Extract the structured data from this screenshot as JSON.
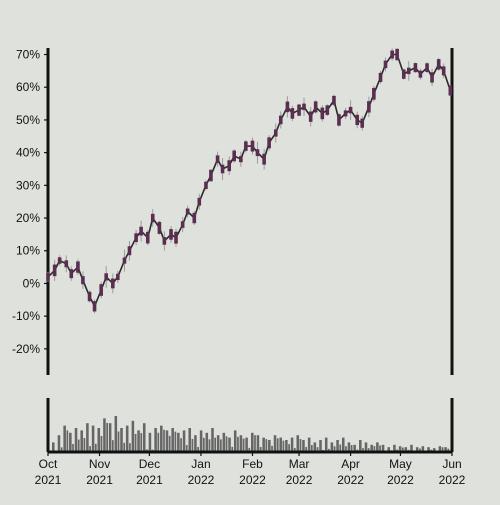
{
  "chart_data": [
    {
      "type": "candlestick",
      "title": "",
      "xlabel": "",
      "ylabel": "",
      "y_unit": "%",
      "ylim": [
        -0.28,
        0.72
      ],
      "yticks": [
        -0.2,
        -0.1,
        0.0,
        0.1,
        0.2,
        0.3,
        0.4,
        0.5,
        0.6,
        0.7
      ],
      "ytick_labels": [
        "-20%",
        "-10%",
        "0%",
        "10%",
        "20%",
        "30%",
        "40%",
        "50%",
        "60%",
        "70%"
      ],
      "xlim": [
        "2021-10-01",
        "2022-06-01"
      ],
      "xticks": [
        "2021-10-01",
        "2021-11-01",
        "2021-12-01",
        "2022-01-01",
        "2022-02-01",
        "2022-03-01",
        "2022-04-01",
        "2022-05-01",
        "2022-06-01"
      ],
      "xtick_labels": [
        [
          "Oct",
          "2021"
        ],
        [
          "Nov",
          "2021"
        ],
        [
          "Dec",
          "2021"
        ],
        [
          "Jan",
          "2022"
        ],
        [
          "Feb",
          "2022"
        ],
        [
          "Mar",
          "2022"
        ],
        [
          "Apr",
          "2022"
        ],
        [
          "May",
          "2022"
        ],
        [
          "Jun",
          "2022"
        ]
      ],
      "grid": false,
      "legend": "none",
      "colors": {
        "background": "#dfe2dc",
        "axis": "#111111",
        "body": "#5a2e50",
        "wick": "#9a9a9a",
        "line": "#2a2a2a",
        "volume": "#666666"
      },
      "series": [
        {
          "values_description_key": "daily cumulative return, approximate",
          "x": [
            "2021-10-01",
            "2021-10-05",
            "2021-10-08",
            "2021-10-12",
            "2021-10-15",
            "2021-10-19",
            "2021-10-22",
            "2021-10-26",
            "2021-10-29",
            "2021-11-02",
            "2021-11-05",
            "2021-11-09",
            "2021-11-12",
            "2021-11-16",
            "2021-11-19",
            "2021-11-23",
            "2021-11-26",
            "2021-11-30",
            "2021-12-03",
            "2021-12-07",
            "2021-12-10",
            "2021-12-14",
            "2021-12-17",
            "2021-12-21",
            "2021-12-24",
            "2021-12-28",
            "2021-12-31",
            "2022-01-04",
            "2022-01-07",
            "2022-01-11",
            "2022-01-14",
            "2022-01-18",
            "2022-01-21",
            "2022-01-25",
            "2022-01-28",
            "2022-02-01",
            "2022-02-04",
            "2022-02-08",
            "2022-02-11",
            "2022-02-15",
            "2022-02-18",
            "2022-02-22",
            "2022-02-25",
            "2022-03-01",
            "2022-03-04",
            "2022-03-08",
            "2022-03-11",
            "2022-03-15",
            "2022-03-18",
            "2022-03-22",
            "2022-03-25",
            "2022-03-29",
            "2022-04-01",
            "2022-04-05",
            "2022-04-08",
            "2022-04-12",
            "2022-04-15",
            "2022-04-19",
            "2022-04-22",
            "2022-04-26",
            "2022-04-29",
            "2022-05-03",
            "2022-05-06",
            "2022-05-10",
            "2022-05-13",
            "2022-05-17",
            "2022-05-20",
            "2022-05-24",
            "2022-05-27",
            "2022-05-31"
          ],
          "values": [
            0.02,
            0.04,
            0.07,
            0.06,
            0.03,
            0.05,
            0.01,
            -0.04,
            -0.07,
            -0.02,
            0.02,
            0.0,
            0.02,
            0.07,
            0.1,
            0.14,
            0.16,
            0.14,
            0.2,
            0.17,
            0.13,
            0.15,
            0.14,
            0.18,
            0.22,
            0.2,
            0.25,
            0.3,
            0.33,
            0.38,
            0.35,
            0.36,
            0.39,
            0.38,
            0.42,
            0.42,
            0.4,
            0.38,
            0.43,
            0.46,
            0.5,
            0.54,
            0.52,
            0.53,
            0.54,
            0.51,
            0.54,
            0.52,
            0.53,
            0.56,
            0.5,
            0.52,
            0.53,
            0.5,
            0.49,
            0.54,
            0.58,
            0.63,
            0.67,
            0.7,
            0.7,
            0.64,
            0.65,
            0.66,
            0.64,
            0.66,
            0.63,
            0.67,
            0.65,
            0.59
          ]
        }
      ]
    },
    {
      "type": "bar",
      "title": "",
      "ylabel": "",
      "role": "volume panel below price chart",
      "x_shared": true,
      "values_relative": [
        0.2,
        0.35,
        0.55,
        0.4,
        0.5,
        0.45,
        0.6,
        0.55,
        0.5,
        0.7,
        0.6,
        0.75,
        0.5,
        0.55,
        0.65,
        0.45,
        0.6,
        0.4,
        0.5,
        0.55,
        0.45,
        0.5,
        0.4,
        0.45,
        0.5,
        0.35,
        0.45,
        0.4,
        0.5,
        0.35,
        0.4,
        0.3,
        0.45,
        0.35,
        0.3,
        0.4,
        0.35,
        0.3,
        0.25,
        0.35,
        0.3,
        0.25,
        0.3,
        0.35,
        0.25,
        0.3,
        0.2,
        0.25,
        0.3,
        0.2,
        0.25,
        0.3,
        0.2,
        0.15,
        0.25,
        0.2,
        0.15,
        0.2,
        0.15,
        0.1,
        0.15,
        0.12,
        0.1,
        0.15,
        0.1,
        0.12,
        0.1,
        0.08,
        0.12,
        0.1
      ]
    }
  ]
}
